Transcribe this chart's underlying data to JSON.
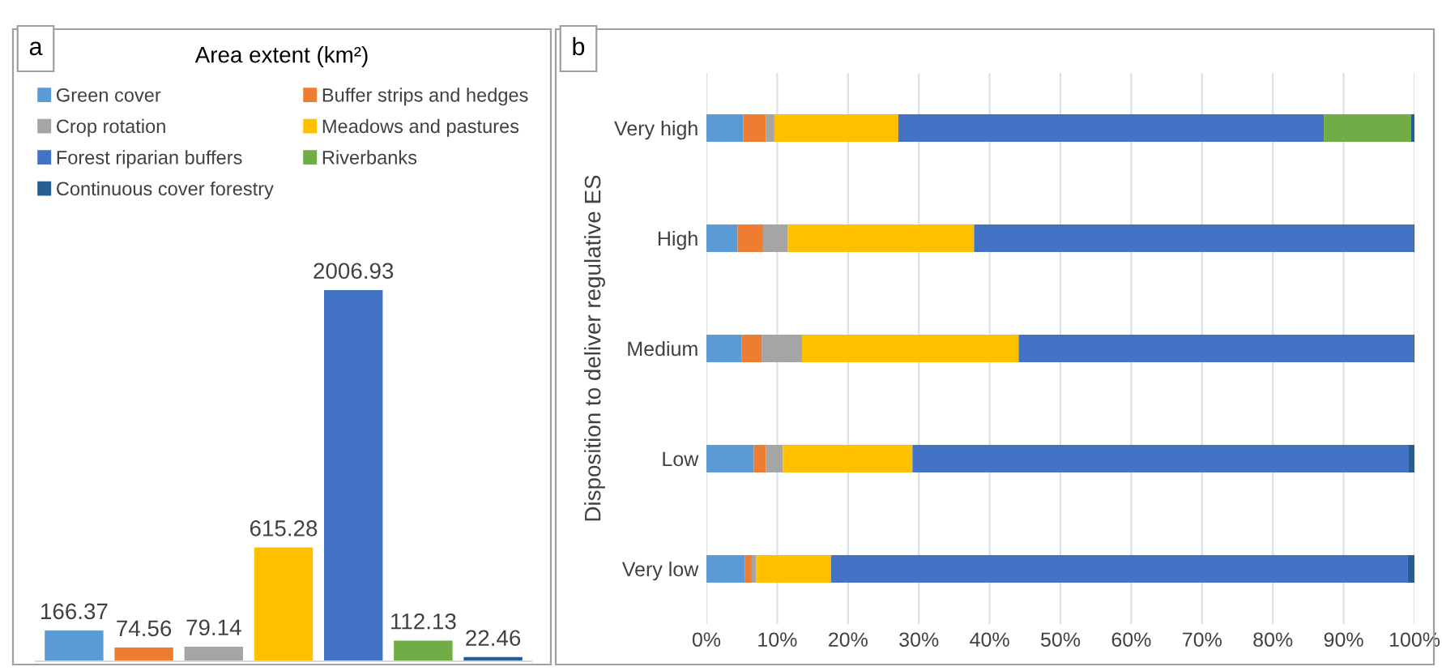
{
  "chart_data": [
    {
      "type": "bar",
      "stacked": true,
      "title": "Area extent (km²)",
      "annotations": [
        "a"
      ],
      "categories": [
        null,
        null,
        null,
        null,
        null,
        null,
        null
      ],
      "data_labels": true,
      "legend": "top",
      "grid": false,
      "series": [
        {
          "name": "Green cover",
          "color": "#5b9bd5",
          "values": [
            166.37,
            null,
            null,
            null,
            null,
            null,
            null
          ]
        },
        {
          "name": "Buffer strips and hedges",
          "color": "#ed7d31",
          "values": [
            null,
            74.56,
            null,
            null,
            null,
            null,
            null
          ]
        },
        {
          "name": "Crop rotation",
          "color": "#a5a5a5",
          "values": [
            null,
            null,
            79.14,
            null,
            null,
            null,
            null
          ]
        },
        {
          "name": "Meadows and pastures",
          "color": "#ffc000",
          "values": [
            null,
            null,
            null,
            615.28,
            null,
            null,
            null
          ]
        },
        {
          "name": "Forest riparian buffers",
          "color": "#4472c4",
          "values": [
            null,
            null,
            null,
            null,
            2006.93,
            null,
            null
          ]
        },
        {
          "name": "Riverbanks",
          "color": "#70ad47",
          "values": [
            null,
            null,
            null,
            null,
            null,
            112.13,
            null
          ]
        },
        {
          "name": "Continuous cover forestry",
          "color": "#255e91",
          "values": [
            null,
            null,
            null,
            null,
            null,
            null,
            22.46
          ]
        }
      ]
    },
    {
      "type": "bar",
      "orientation": "horizontal",
      "stacked": true,
      "annotations": [
        "b"
      ],
      "ylabel": "Disposition to deliver regulative ES",
      "categories": [
        "Very high",
        "High",
        "Medium",
        "Low",
        "Very low"
      ],
      "xlim": [
        0,
        100
      ],
      "xticks": [
        {
          "value": 0,
          "label": "0%"
        },
        {
          "value": 10,
          "label": "10%"
        },
        {
          "value": 20,
          "label": "20%"
        },
        {
          "value": 30,
          "label": "30%"
        },
        {
          "value": 40,
          "label": "40%"
        },
        {
          "value": 50,
          "label": "50%"
        },
        {
          "value": 60,
          "label": "60%"
        },
        {
          "value": 70,
          "label": "70%"
        },
        {
          "value": 80,
          "label": "80%"
        },
        {
          "value": 90,
          "label": "90%"
        },
        {
          "value": 100,
          "label": "100%"
        }
      ],
      "grid": "x",
      "series": [
        {
          "color": "#5b9bd5",
          "values": [
            5.2,
            4.4,
            5.0,
            6.7,
            5.4
          ]
        },
        {
          "color": "#ed7d31",
          "values": [
            3.2,
            3.6,
            2.8,
            1.7,
            1.0
          ]
        },
        {
          "color": "#a5a5a5",
          "values": [
            1.2,
            3.5,
            5.7,
            2.4,
            0.6
          ]
        },
        {
          "color": "#ffc000",
          "values": [
            17.5,
            26.3,
            30.6,
            18.3,
            10.6
          ]
        },
        {
          "color": "#4472c4",
          "values": [
            60.1,
            62.0,
            55.7,
            70.1,
            81.4
          ]
        },
        {
          "color": "#70ad47",
          "values": [
            12.3,
            0,
            0,
            0,
            0
          ]
        },
        {
          "color": "#255e91",
          "values": [
            0.5,
            0.2,
            0.2,
            0.8,
            1.0
          ]
        }
      ]
    }
  ]
}
